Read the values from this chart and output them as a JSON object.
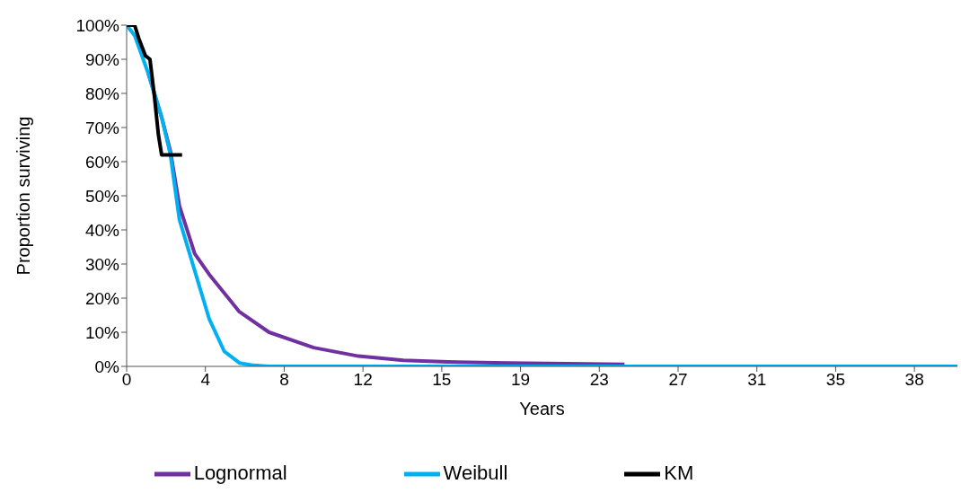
{
  "chart_data": {
    "type": "line",
    "xlabel": "Years",
    "ylabel": "Proportion surviving",
    "xlim": [
      0,
      40.6
    ],
    "xticks": [
      {
        "value": 0,
        "label": "0"
      },
      {
        "value": 3.85,
        "label": "4"
      },
      {
        "value": 7.7,
        "label": "8"
      },
      {
        "value": 11.55,
        "label": "12"
      },
      {
        "value": 15.4,
        "label": "15"
      },
      {
        "value": 19.25,
        "label": "19"
      },
      {
        "value": 23.1,
        "label": "23"
      },
      {
        "value": 26.95,
        "label": "27"
      },
      {
        "value": 30.8,
        "label": "31"
      },
      {
        "value": 34.65,
        "label": "35"
      },
      {
        "value": 38.5,
        "label": "38"
      }
    ],
    "ylim": [
      0,
      100
    ],
    "yticks": [
      {
        "value": 0,
        "label": "0%"
      },
      {
        "value": 10,
        "label": "10%"
      },
      {
        "value": 20,
        "label": "20%"
      },
      {
        "value": 30,
        "label": "30%"
      },
      {
        "value": 40,
        "label": "40%"
      },
      {
        "value": 50,
        "label": "50%"
      },
      {
        "value": 60,
        "label": "60%"
      },
      {
        "value": 70,
        "label": "70%"
      },
      {
        "value": 80,
        "label": "80%"
      },
      {
        "value": 90,
        "label": "90%"
      },
      {
        "value": 100,
        "label": "100%"
      }
    ],
    "grid": false,
    "legend": "bottom",
    "marker": "none",
    "line_style": "solid",
    "series": [
      {
        "name": "Lognormal",
        "color": "#7030a0",
        "x": [
          1.05,
          1.71,
          2.14,
          2.58,
          3.33,
          4.03,
          5.51,
          6.96,
          9.14,
          11.33,
          13.52,
          15.71,
          18.64,
          24.33
        ],
        "values": [
          86,
          73,
          63,
          47,
          33,
          27,
          16,
          10,
          5.5,
          3,
          1.8,
          1.3,
          1,
          0.6
        ]
      },
      {
        "name": "Weibull",
        "color": "#00b0f0",
        "x": [
          0,
          0.39,
          1.05,
          1.71,
          2.14,
          2.58,
          3.33,
          4.03,
          4.77,
          5.51,
          6.21,
          6.96,
          40.6
        ],
        "values": [
          100,
          97,
          86,
          73,
          62,
          43,
          28,
          14,
          4.4,
          1,
          0.3,
          0,
          0
        ]
      },
      {
        "name": "KM",
        "color": "#000000",
        "x": [
          0,
          0.39,
          0.6,
          0.92,
          1.14,
          1.36,
          1.55,
          1.71,
          2.71
        ],
        "values": [
          100,
          100,
          96,
          91,
          90,
          79,
          68,
          62,
          62
        ]
      }
    ]
  }
}
